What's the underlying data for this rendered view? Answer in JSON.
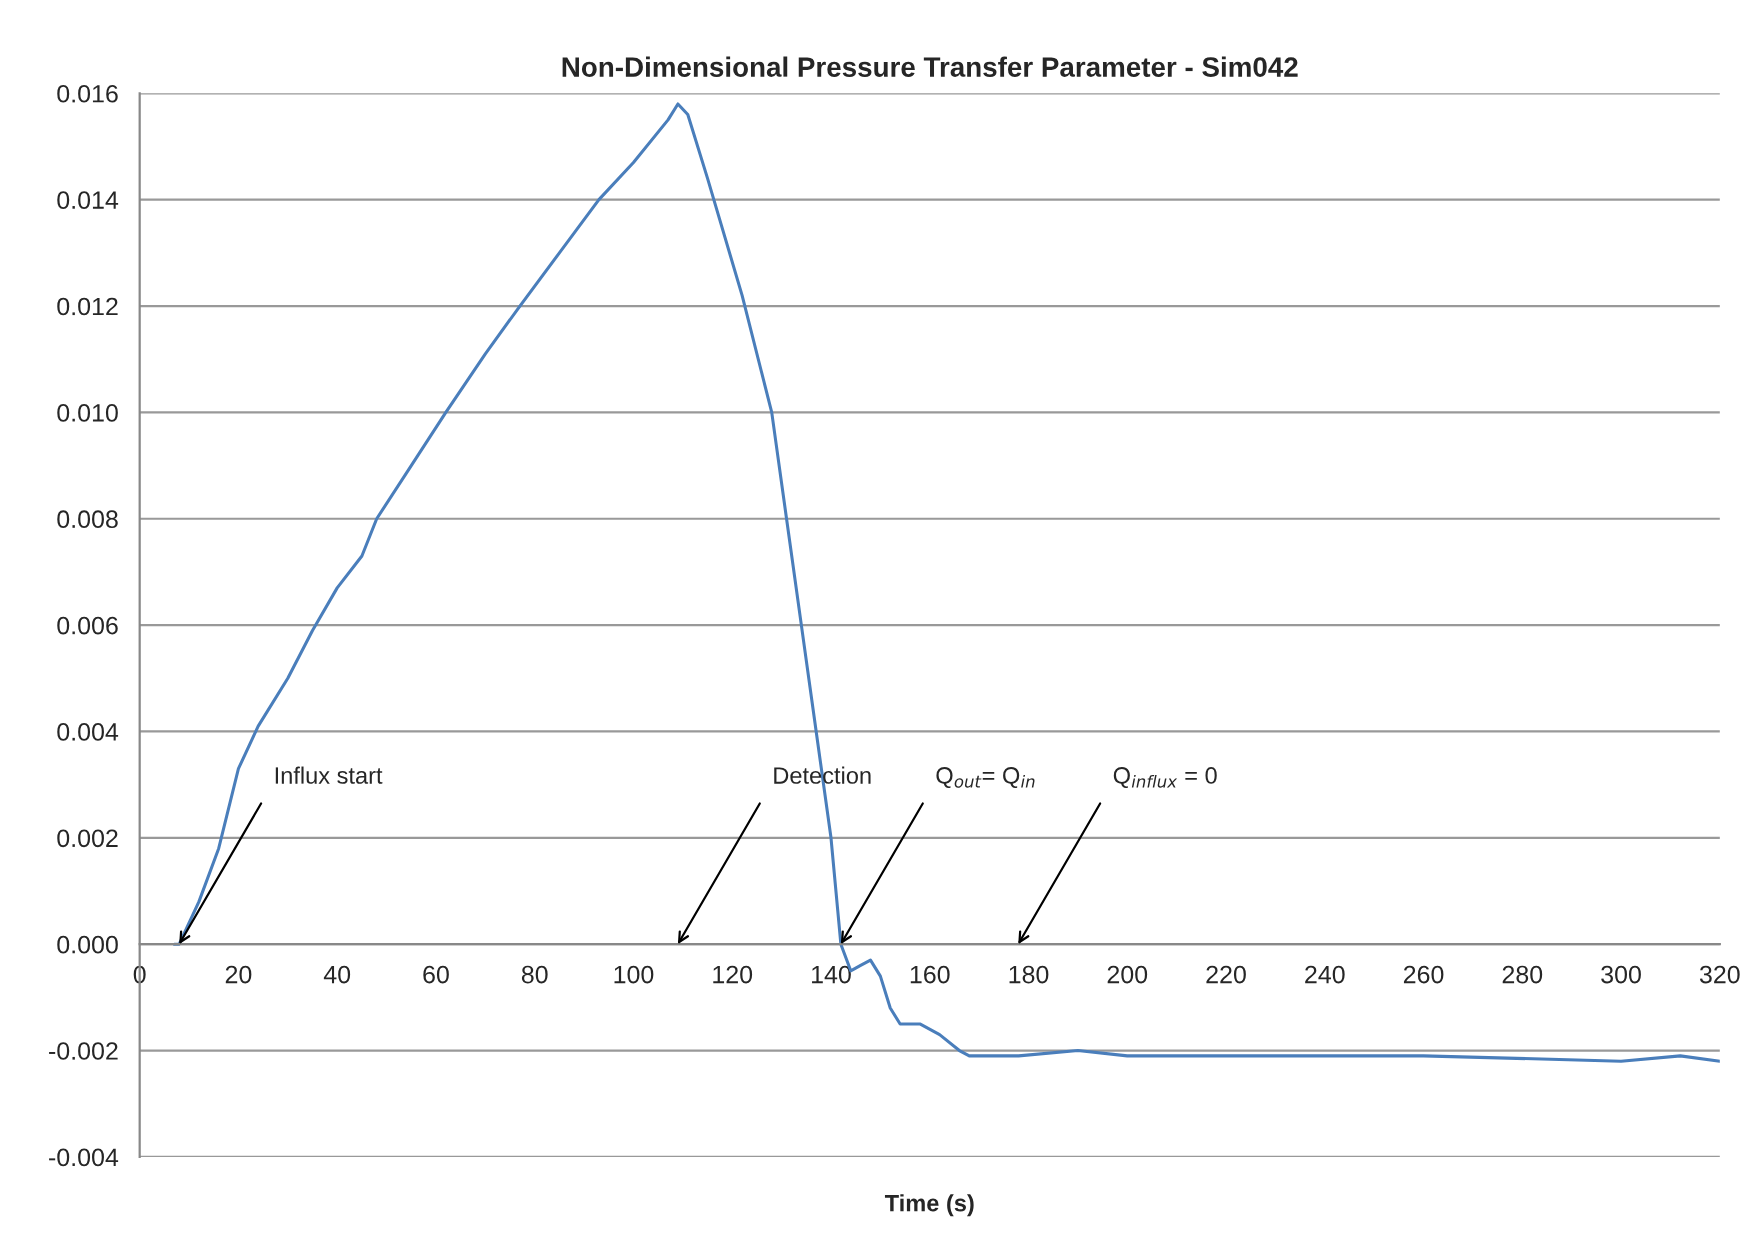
{
  "chart_data": {
    "type": "line",
    "title": "Non-Dimensional Pressure Transfer Parameter - Sim042",
    "xlabel": "Time (s)",
    "xlim": [
      0,
      320
    ],
    "xticks": [
      0,
      20,
      40,
      60,
      80,
      100,
      120,
      140,
      160,
      180,
      200,
      220,
      240,
      260,
      280,
      300,
      320
    ],
    "ylim": [
      -0.004,
      0.016
    ],
    "yticks": [
      {
        "value": -0.004,
        "label": "-0.004"
      },
      {
        "value": -0.002,
        "label": "-0.002"
      },
      {
        "value": 0,
        "label": "0.000"
      },
      {
        "value": 0.002,
        "label": "0.002"
      },
      {
        "value": 0.004,
        "label": "0.004"
      },
      {
        "value": 0.006,
        "label": "0.006"
      },
      {
        "value": 0.008,
        "label": "0.008"
      },
      {
        "value": 0.01,
        "label": "0.010"
      },
      {
        "value": 0.012,
        "label": "0.012"
      },
      {
        "value": 0.014,
        "label": "0.014"
      },
      {
        "value": 0.016,
        "label": "0.016"
      }
    ],
    "grid": "y",
    "marker": "none",
    "line_style": "solid",
    "series": [
      {
        "color": "#4a7ebb",
        "x": [
          7,
          8,
          12,
          16,
          20,
          24,
          30,
          35,
          40,
          45,
          48,
          55,
          62,
          70,
          77,
          85,
          93,
          100,
          107,
          109,
          111,
          115,
          122,
          128,
          131,
          134,
          137,
          140,
          142,
          144,
          146,
          148,
          150,
          152,
          154,
          158,
          162,
          166,
          168,
          172,
          178,
          190,
          200,
          260,
          300,
          312,
          320
        ],
        "values": [
          0,
          0,
          0.0008,
          0.0018,
          0.0033,
          0.0041,
          0.005,
          0.0059,
          0.0067,
          0.0073,
          0.008,
          0.009,
          0.01,
          0.0111,
          0.012,
          0.013,
          0.014,
          0.0147,
          0.0155,
          0.0158,
          0.0156,
          0.0144,
          0.0122,
          0.01,
          0.008,
          0.006,
          0.004,
          0.002,
          0,
          -0.0005,
          -0.0004,
          -0.0003,
          -0.0006,
          -0.0012,
          -0.0015,
          -0.0015,
          -0.0017,
          -0.002,
          -0.0021,
          -0.0021,
          -0.0021,
          -0.002,
          -0.0021,
          -0.0021,
          -0.0022,
          -0.0021,
          -0.0022
        ]
      }
    ],
    "annotations": [
      {
        "text": "Influx start",
        "x": 8,
        "y": 0
      },
      "Detection",
      {
        "text": "Q$_{out}$= Q$_{in}$",
        "x": 142,
        "y": 0
      },
      "Q$_{influx}$ = 0"
    ]
  }
}
